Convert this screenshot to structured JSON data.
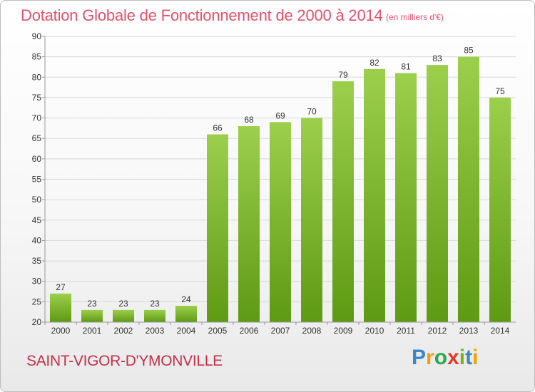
{
  "header": {
    "title": "Dotation Globale de Fonctionnement de 2000 à 2014",
    "subtitle": "(en milliers d'€)"
  },
  "footer": {
    "commune": "SAINT-VIGOR-D'YMONVILLE",
    "logo_letters": [
      "P",
      "r",
      "o",
      "x",
      "i",
      "t",
      "i"
    ],
    "logo_colors": [
      "#3a86c8",
      "#f39c12",
      "#2ea84f",
      "#e63a2e",
      "#7ab317",
      "#3a86c8",
      "#f0a400"
    ]
  },
  "colors": {
    "bar_top": "#9ccf4c",
    "bar_bottom": "#5e9a13",
    "grid": "#d8d8d8",
    "axis": "#9a9a9a",
    "title": "#e0526c",
    "commune": "#c2304a"
  },
  "chart_data": {
    "type": "bar",
    "categories": [
      "2000",
      "2001",
      "2002",
      "2003",
      "2004",
      "2005",
      "2006",
      "2007",
      "2008",
      "2009",
      "2010",
      "2011",
      "2012",
      "2013",
      "2014"
    ],
    "values": [
      27,
      23,
      23,
      23,
      24,
      66,
      68,
      69,
      70,
      79,
      82,
      81,
      83,
      85,
      75
    ],
    "title": "Dotation Globale de Fonctionnement de 2000 à 2014",
    "subtitle": "(en milliers d'€)",
    "xlabel": "",
    "ylabel": "",
    "ylim": [
      20,
      90
    ],
    "yticks": [
      20,
      25,
      30,
      35,
      40,
      45,
      50,
      55,
      60,
      65,
      70,
      75,
      80,
      85,
      90
    ],
    "grid": true,
    "legend": "none"
  }
}
